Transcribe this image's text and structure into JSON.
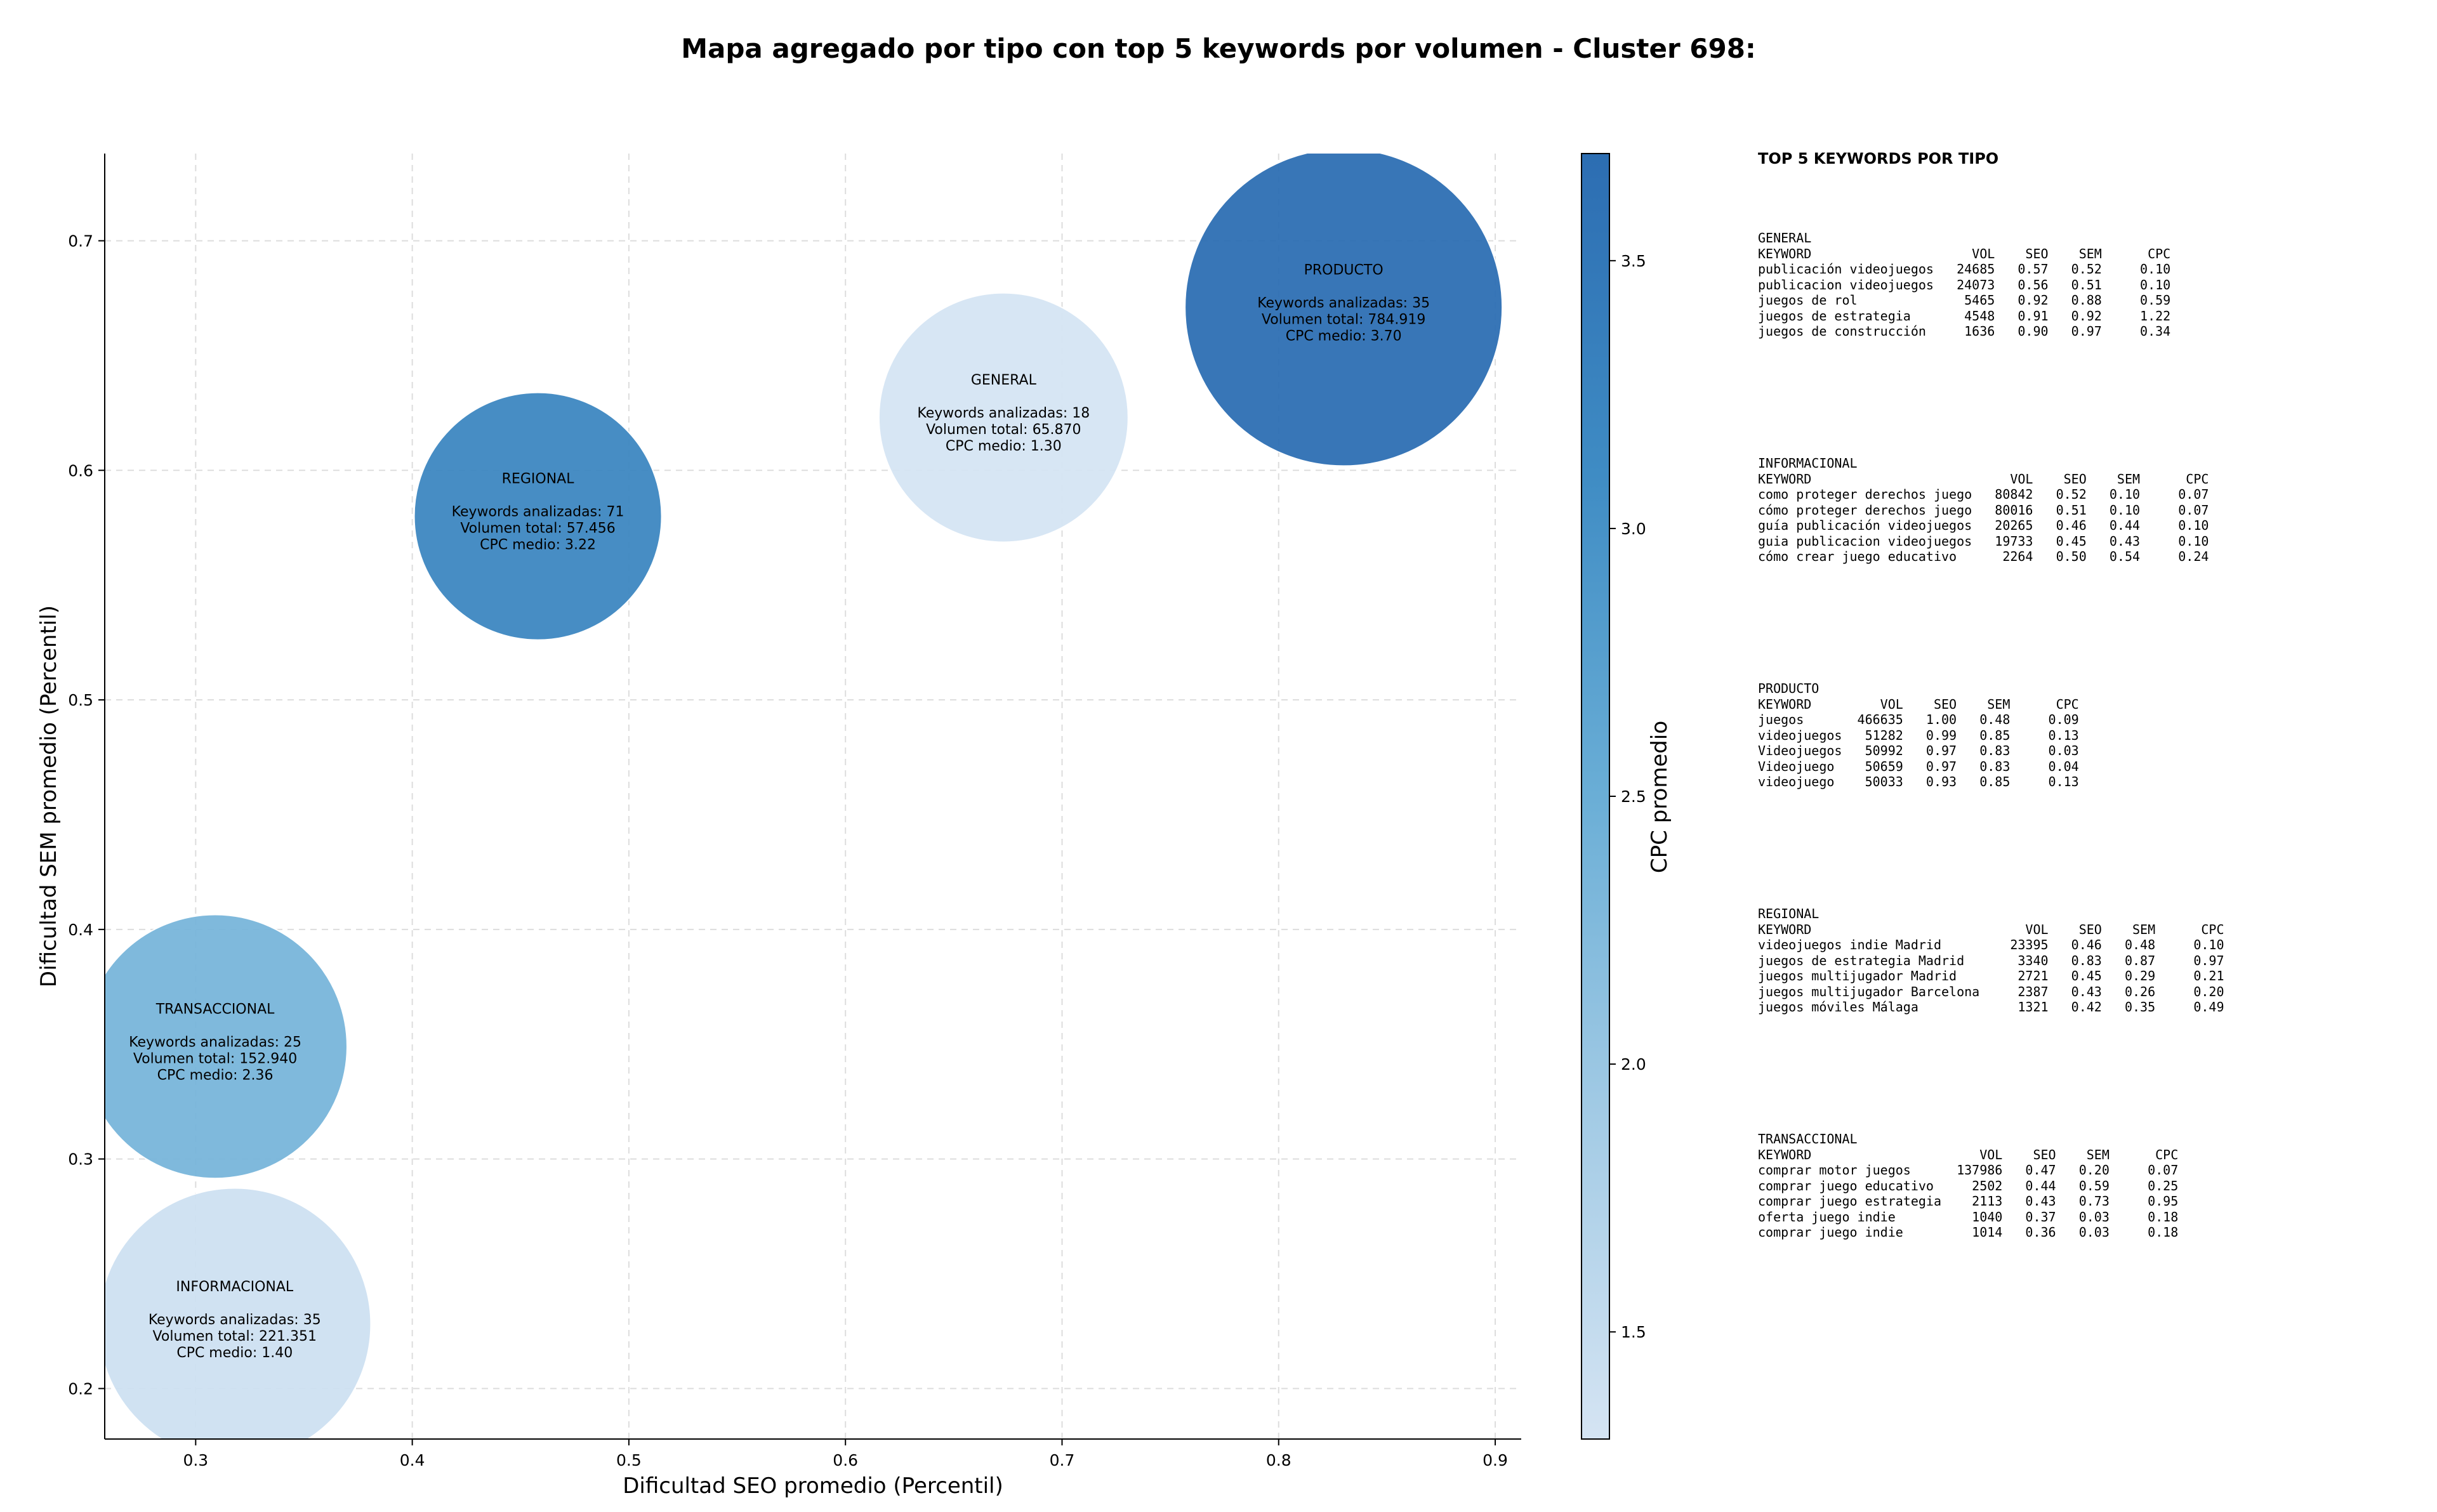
{
  "chart_data": {
    "type": "scatter",
    "title": "Mapa agregado por tipo con top 5 keywords por volumen - Cluster 698:",
    "xlabel": "Dificultad SEO promedio (Percentil)",
    "ylabel": "Dificultad SEM promedio (Percentil)",
    "xlim": [
      0.258,
      0.912
    ],
    "ylim": [
      0.178,
      0.738
    ],
    "xticks": [
      0.3,
      0.4,
      0.5,
      0.6,
      0.7,
      0.8,
      0.9
    ],
    "xtick_labels": [
      "0.3",
      "0.4",
      "0.5",
      "0.6",
      "0.7",
      "0.8",
      "0.9"
    ],
    "yticks": [
      0.2,
      0.3,
      0.4,
      0.5,
      0.6,
      0.7
    ],
    "ytick_labels": [
      "0.2",
      "0.3",
      "0.4",
      "0.5",
      "0.6",
      "0.7"
    ],
    "grid": true,
    "colorbar": {
      "label": "CPC promedio",
      "min": 1.3,
      "max": 3.7,
      "ticks": [
        1.5,
        2.0,
        2.5,
        3.0,
        3.5
      ],
      "tick_labels": [
        "1.5",
        "2.0",
        "2.5",
        "3.0",
        "3.5"
      ],
      "colormap": [
        "#d5e4f3",
        "#a3cbe5",
        "#6aaed6",
        "#3f8cc4",
        "#2c6db2"
      ]
    },
    "points": [
      {
        "name": "PRODUCTO",
        "x": 0.83,
        "y": 0.671,
        "keywords": 35,
        "volume": 784919,
        "cpc": 3.7,
        "lines": [
          "Keywords analizadas: 35",
          "Volumen total: 784.919",
          "CPC medio: 3.70"
        ]
      },
      {
        "name": "GENERAL",
        "x": 0.673,
        "y": 0.623,
        "keywords": 18,
        "volume": 65870,
        "cpc": 1.3,
        "lines": [
          "Keywords analizadas: 18",
          "Volumen total: 65.870",
          "CPC medio: 1.30"
        ]
      },
      {
        "name": "REGIONAL",
        "x": 0.458,
        "y": 0.58,
        "keywords": 71,
        "volume": 57456,
        "cpc": 3.22,
        "lines": [
          "Keywords analizadas: 71",
          "Volumen total: 57.456",
          "CPC medio: 3.22"
        ]
      },
      {
        "name": "TRANSACCIONAL",
        "x": 0.309,
        "y": 0.349,
        "keywords": 25,
        "volume": 152940,
        "cpc": 2.36,
        "lines": [
          "Keywords analizadas: 25",
          "Volumen total: 152.940",
          "CPC medio: 2.36"
        ]
      },
      {
        "name": "INFORMACIONAL",
        "x": 0.318,
        "y": 0.228,
        "keywords": 35,
        "volume": 221351,
        "cpc": 1.4,
        "lines": [
          "Keywords analizadas: 35",
          "Volumen total: 221.351",
          "CPC medio: 1.40"
        ]
      }
    ]
  },
  "side_panel": {
    "title": "TOP 5 KEYWORDS POR TIPO",
    "groups": [
      {
        "name": "GENERAL",
        "lines": [
          "KEYWORD                     VOL    SEO    SEM      CPC",
          "publicación videojuegos   24685   0.57   0.52     0.10",
          "publicacion videojuegos   24073   0.56   0.51     0.10",
          "juegos de rol              5465   0.92   0.88     0.59",
          "juegos de estrategia       4548   0.91   0.92     1.22",
          "juegos de construcción     1636   0.90   0.97     0.34"
        ]
      },
      {
        "name": "INFORMACIONAL",
        "lines": [
          "KEYWORD                          VOL    SEO    SEM      CPC",
          "como proteger derechos juego   80842   0.52   0.10     0.07",
          "cómo proteger derechos juego   80016   0.51   0.10     0.07",
          "guía publicación videojuegos   20265   0.46   0.44     0.10",
          "guia publicacion videojuegos   19733   0.45   0.43     0.10",
          "cómo crear juego educativo      2264   0.50   0.54     0.24"
        ]
      },
      {
        "name": "PRODUCTO",
        "lines": [
          "KEYWORD         VOL    SEO    SEM      CPC",
          "juegos       466635   1.00   0.48     0.09",
          "videojuegos   51282   0.99   0.85     0.13",
          "Videojuegos   50992   0.97   0.83     0.03",
          "Videojuego    50659   0.97   0.83     0.04",
          "videojuego    50033   0.93   0.85     0.13"
        ]
      },
      {
        "name": "REGIONAL",
        "lines": [
          "KEYWORD                            VOL    SEO    SEM      CPC",
          "videojuegos indie Madrid         23395   0.46   0.48     0.10",
          "juegos de estrategia Madrid       3340   0.83   0.87     0.97",
          "juegos multijugador Madrid        2721   0.45   0.29     0.21",
          "juegos multijugador Barcelona     2387   0.43   0.26     0.20",
          "juegos móviles Málaga             1321   0.42   0.35     0.49"
        ]
      },
      {
        "name": "TRANSACCIONAL",
        "lines": [
          "KEYWORD                      VOL    SEO    SEM      CPC",
          "comprar motor juegos      137986   0.47   0.20     0.07",
          "comprar juego educativo     2502   0.44   0.59     0.25",
          "comprar juego estrategia    2113   0.43   0.73     0.95",
          "oferta juego indie          1040   0.37   0.03     0.18",
          "comprar juego indie         1014   0.36   0.03     0.18"
        ]
      }
    ]
  }
}
